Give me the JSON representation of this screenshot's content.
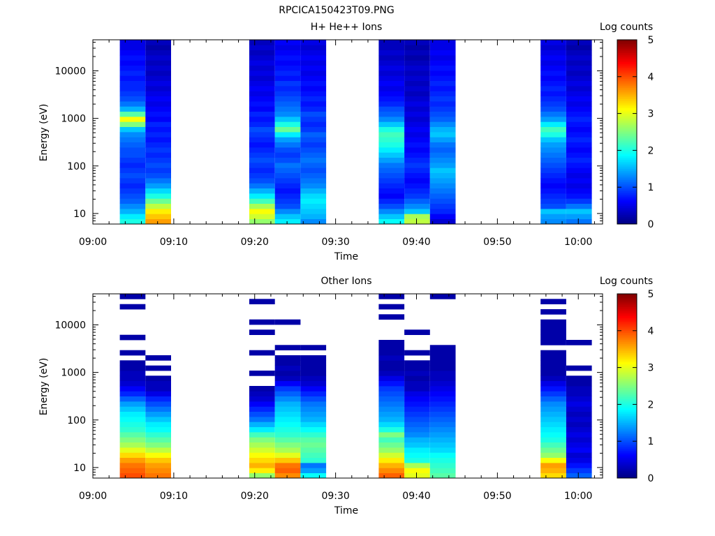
{
  "figure_title": "RPCICA150423T09.PNG",
  "chart_data": [
    {
      "type": "heatmap",
      "title": "H+ He++ Ions",
      "xlabel": "Time",
      "ylabel": "Energy (eV)",
      "yscale": "log",
      "ylim": [
        6,
        45000
      ],
      "xlim": [
        "09:00",
        "10:03"
      ],
      "x_ticks": [
        "09:00",
        "09:10",
        "09:20",
        "09:30",
        "09:40",
        "09:50",
        "10:00"
      ],
      "y_ticks": [
        "10",
        "100",
        "1000",
        "10000"
      ],
      "colorbar": {
        "label": "Log counts",
        "range": [
          0,
          5
        ],
        "ticks": [
          "0",
          "1",
          "2",
          "3",
          "4",
          "5"
        ]
      },
      "grid": false,
      "columns": [
        {
          "start": "09:03:20",
          "end": "09:06:30",
          "log_counts_low_to_high": [
            2.0,
            1.8,
            1.5,
            1.3,
            1.1,
            1.0,
            0.9,
            0.8,
            0.9,
            1.0,
            0.9,
            0.8,
            0.9,
            1.0,
            1.0,
            1.1,
            1.2,
            1.3,
            1.6,
            2.5,
            3.1,
            2.3,
            1.5,
            1.2,
            1.0,
            0.9,
            0.8,
            0.8,
            0.7,
            0.8,
            0.7,
            0.6,
            0.7,
            0.6,
            0.5,
            0.5
          ]
        },
        {
          "start": "09:06:30",
          "end": "09:09:40",
          "log_counts_low_to_high": [
            3.6,
            3.4,
            3.2,
            2.8,
            2.4,
            2.0,
            1.7,
            1.4,
            1.2,
            1.0,
            0.9,
            1.0,
            0.9,
            0.8,
            0.9,
            0.8,
            0.7,
            0.8,
            0.7,
            0.8,
            0.6,
            0.7,
            0.6,
            0.5,
            0.6,
            0.5,
            0.4,
            0.5,
            0.4,
            0.3,
            0.4,
            0.3,
            0.4,
            0.3,
            0.2,
            0.3
          ]
        },
        {
          "start": "09:19:20",
          "end": "09:22:30",
          "log_counts_low_to_high": [
            2.6,
            2.9,
            3.1,
            2.7,
            2.2,
            1.8,
            1.5,
            1.2,
            1.0,
            0.9,
            0.8,
            0.9,
            1.0,
            0.9,
            0.8,
            0.7,
            0.8,
            0.9,
            1.0,
            0.8,
            0.7,
            0.8,
            0.6,
            0.7,
            0.6,
            0.5,
            0.6,
            0.5,
            0.4,
            0.5,
            0.4,
            0.5,
            0.4,
            0.3,
            0.4,
            0.3
          ]
        },
        {
          "start": "09:22:30",
          "end": "09:25:40",
          "log_counts_low_to_high": [
            1.8,
            1.6,
            1.3,
            1.0,
            0.9,
            0.8,
            0.7,
            0.8,
            0.9,
            1.0,
            1.1,
            1.2,
            1.0,
            0.9,
            1.0,
            1.2,
            1.4,
            1.8,
            2.4,
            2.0,
            1.6,
            1.3,
            1.2,
            1.1,
            1.0,
            0.9,
            0.8,
            0.9,
            0.7,
            0.8,
            0.7,
            0.6,
            0.7,
            0.6,
            0.5,
            0.6
          ]
        },
        {
          "start": "09:25:40",
          "end": "09:28:50",
          "log_counts_low_to_high": [
            1.3,
            1.5,
            1.6,
            1.7,
            1.8,
            1.7,
            1.5,
            1.3,
            1.2,
            1.1,
            1.0,
            1.1,
            1.2,
            1.1,
            1.0,
            0.9,
            1.0,
            1.1,
            0.9,
            0.8,
            0.9,
            1.0,
            0.8,
            0.7,
            0.8,
            0.7,
            0.6,
            0.7,
            0.6,
            0.5,
            0.6,
            0.5,
            0.6,
            0.5,
            0.4,
            0.5
          ]
        },
        {
          "start": "09:35:20",
          "end": "09:38:30",
          "log_counts_low_to_high": [
            1.9,
            1.6,
            1.3,
            1.0,
            0.8,
            0.6,
            0.7,
            0.8,
            0.9,
            1.0,
            1.1,
            1.2,
            1.4,
            1.6,
            1.8,
            2.0,
            2.1,
            2.2,
            2.0,
            1.6,
            1.3,
            1.1,
            1.0,
            0.8,
            0.7,
            0.6,
            0.5,
            0.6,
            0.5,
            0.4,
            0.5,
            0.4,
            0.3,
            0.4,
            0.3,
            0.3
          ]
        },
        {
          "start": "09:38:30",
          "end": "09:41:40",
          "log_counts_low_to_high": [
            2.8,
            2.7,
            1.6,
            1.3,
            1.1,
            0.9,
            0.8,
            0.7,
            0.6,
            0.7,
            0.8,
            0.9,
            0.8,
            0.7,
            0.6,
            0.7,
            0.6,
            0.5,
            0.6,
            0.5,
            0.4,
            0.5,
            0.4,
            0.5,
            0.4,
            0.3,
            0.4,
            0.3,
            0.4,
            0.3,
            0.4,
            0.3,
            0.2,
            0.3,
            0.2,
            0.3
          ]
        },
        {
          "start": "09:41:40",
          "end": "09:44:50",
          "log_counts_low_to_high": [
            0.4,
            0.6,
            0.8,
            0.9,
            1.0,
            1.1,
            1.2,
            1.3,
            1.4,
            1.5,
            1.6,
            1.4,
            1.3,
            1.2,
            1.1,
            1.2,
            1.4,
            1.6,
            1.5,
            1.3,
            1.1,
            1.0,
            0.9,
            0.8,
            0.9,
            0.8,
            0.7,
            0.8,
            0.7,
            0.6,
            0.7,
            0.6,
            0.5,
            0.6,
            0.5,
            0.5
          ]
        },
        {
          "start": "09:55:20",
          "end": "09:58:30",
          "log_counts_low_to_high": [
            1.3,
            1.4,
            1.6,
            1.0,
            0.9,
            0.8,
            0.7,
            0.6,
            0.7,
            0.8,
            0.9,
            1.0,
            1.1,
            1.2,
            1.3,
            1.4,
            1.6,
            2.0,
            2.2,
            1.8,
            1.4,
            1.2,
            1.0,
            0.9,
            0.8,
            0.7,
            0.8,
            0.7,
            0.6,
            0.7,
            0.6,
            0.5,
            0.6,
            0.5,
            0.4,
            0.5
          ]
        },
        {
          "start": "09:58:30",
          "end": "10:01:40",
          "log_counts_low_to_high": [
            1.2,
            1.4,
            1.6,
            1.2,
            0.9,
            0.7,
            0.6,
            0.5,
            0.6,
            0.5,
            0.6,
            0.7,
            0.8,
            0.7,
            0.6,
            0.7,
            0.8,
            0.7,
            0.6,
            0.7,
            0.8,
            0.7,
            0.6,
            0.5,
            0.6,
            0.5,
            0.4,
            0.5,
            0.4,
            0.3,
            0.4,
            0.3,
            0.4,
            0.3,
            0.2,
            0.3
          ]
        }
      ]
    },
    {
      "type": "heatmap",
      "title": "Other Ions",
      "xlabel": "Time",
      "ylabel": "Energy (eV)",
      "yscale": "log",
      "ylim": [
        6,
        45000
      ],
      "xlim": [
        "09:00",
        "10:03"
      ],
      "x_ticks": [
        "09:00",
        "09:10",
        "09:20",
        "09:30",
        "09:40",
        "09:50",
        "10:00"
      ],
      "y_ticks": [
        "10",
        "100",
        "1000",
        "10000"
      ],
      "colorbar": {
        "label": "Log counts",
        "range": [
          0,
          5
        ],
        "ticks": [
          "0",
          "1",
          "2",
          "3",
          "4",
          "5"
        ]
      },
      "grid": false,
      "columns": [
        {
          "start": "09:03:20",
          "end": "09:06:30",
          "log_counts_low_to_high": [
            4.0,
            3.9,
            3.8,
            3.6,
            3.3,
            3.0,
            2.7,
            2.5,
            2.3,
            2.1,
            2.0,
            1.9,
            1.8,
            1.6,
            1.4,
            1.1,
            0.8,
            0.6,
            0.4,
            0.3,
            0.3,
            0.2,
            0.2,
            null,
            0.2,
            null,
            null,
            0.2,
            null,
            null,
            null,
            null,
            null,
            0.2,
            null,
            0.2
          ]
        },
        {
          "start": "09:06:30",
          "end": "09:09:40",
          "log_counts_low_to_high": [
            3.8,
            3.7,
            3.6,
            3.4,
            3.1,
            2.8,
            2.5,
            2.3,
            2.1,
            1.9,
            1.8,
            1.6,
            1.4,
            1.2,
            1.0,
            0.8,
            0.5,
            0.3,
            0.3,
            0.2,
            null,
            0.2,
            null,
            0.2,
            null,
            null,
            null,
            null,
            null,
            null,
            null,
            null,
            null,
            null,
            null,
            null
          ]
        },
        {
          "start": "09:19:20",
          "end": "09:22:30",
          "log_counts_low_to_high": [
            2.6,
            3.2,
            3.5,
            3.3,
            3.1,
            2.9,
            2.7,
            2.5,
            2.2,
            1.8,
            1.5,
            1.2,
            1.0,
            0.8,
            0.6,
            0.4,
            0.3,
            0.2,
            null,
            null,
            0.2,
            null,
            null,
            null,
            0.2,
            null,
            null,
            null,
            0.2,
            null,
            0.2,
            null,
            null,
            null,
            0.2,
            null
          ]
        },
        {
          "start": "09:22:30",
          "end": "09:25:40",
          "log_counts_low_to_high": [
            3.7,
            3.9,
            3.8,
            3.4,
            3.0,
            2.7,
            2.5,
            2.3,
            2.1,
            2.0,
            1.9,
            1.8,
            1.7,
            1.6,
            1.5,
            1.3,
            1.1,
            0.9,
            0.6,
            0.3,
            0.2,
            0.3,
            0.2,
            0.2,
            null,
            0.2,
            null,
            null,
            null,
            null,
            0.2,
            null,
            null,
            null,
            null,
            null
          ]
        },
        {
          "start": "09:25:40",
          "end": "09:28:50",
          "log_counts_low_to_high": [
            1.9,
            1.4,
            1.2,
            2.1,
            2.2,
            2.3,
            2.4,
            2.3,
            2.1,
            1.9,
            1.7,
            1.5,
            1.4,
            1.3,
            1.2,
            1.0,
            0.8,
            0.6,
            0.4,
            0.3,
            0.2,
            0.2,
            0.2,
            0.2,
            null,
            0.2,
            null,
            null,
            null,
            null,
            null,
            null,
            null,
            null,
            null,
            null
          ]
        },
        {
          "start": "09:35:20",
          "end": "09:38:30",
          "log_counts_low_to_high": [
            3.9,
            3.7,
            3.5,
            3.2,
            2.9,
            2.6,
            2.4,
            2.2,
            2.5,
            2.0,
            1.7,
            1.5,
            1.4,
            1.3,
            1.2,
            1.1,
            1.0,
            0.9,
            0.7,
            0.5,
            0.3,
            0.2,
            0.2,
            0.3,
            0.2,
            0.2,
            0.2,
            null,
            null,
            null,
            null,
            0.2,
            null,
            0.2,
            null,
            0.2
          ]
        },
        {
          "start": "09:38:30",
          "end": "09:41:40",
          "log_counts_low_to_high": [
            3.0,
            3.1,
            2.7,
            2.0,
            1.9,
            1.8,
            1.6,
            1.5,
            1.3,
            1.2,
            1.1,
            1.0,
            0.9,
            0.8,
            0.7,
            0.6,
            0.5,
            0.3,
            0.3,
            0.2,
            0.3,
            0.2,
            0.2,
            null,
            0.2,
            null,
            null,
            null,
            0.2,
            null,
            null,
            null,
            null,
            null,
            null,
            null
          ]
        },
        {
          "start": "09:41:40",
          "end": "09:44:50",
          "log_counts_low_to_high": [
            2.3,
            2.2,
            2.1,
            2.0,
            1.9,
            1.7,
            1.6,
            1.5,
            1.4,
            1.3,
            1.2,
            1.1,
            1.0,
            0.9,
            0.8,
            0.7,
            0.6,
            0.5,
            0.4,
            0.3,
            0.3,
            0.2,
            0.2,
            0.2,
            0.2,
            0.2,
            null,
            null,
            null,
            null,
            null,
            null,
            null,
            null,
            null,
            0.2
          ]
        },
        {
          "start": "09:55:20",
          "end": "09:58:30",
          "log_counts_low_to_high": [
            3.3,
            3.5,
            3.6,
            3.1,
            2.6,
            2.4,
            2.2,
            2.0,
            1.9,
            1.8,
            1.7,
            1.6,
            1.5,
            1.4,
            1.3,
            1.1,
            0.9,
            0.7,
            0.5,
            0.3,
            0.2,
            0.2,
            0.2,
            0.2,
            0.2,
            null,
            0.2,
            0.2,
            0.2,
            0.2,
            0.2,
            null,
            0.2,
            null,
            0.2,
            null
          ]
        },
        {
          "start": "09:58:30",
          "end": "10:01:40",
          "log_counts_low_to_high": [
            1.1,
            0.9,
            0.7,
            0.5,
            0.4,
            0.6,
            0.5,
            0.4,
            0.5,
            0.4,
            0.3,
            0.4,
            0.3,
            0.4,
            0.5,
            0.4,
            0.3,
            0.3,
            0.2,
            0.2,
            null,
            0.2,
            null,
            null,
            null,
            null,
            0.2,
            null,
            null,
            null,
            null,
            null,
            null,
            null,
            null,
            null
          ]
        }
      ]
    }
  ]
}
